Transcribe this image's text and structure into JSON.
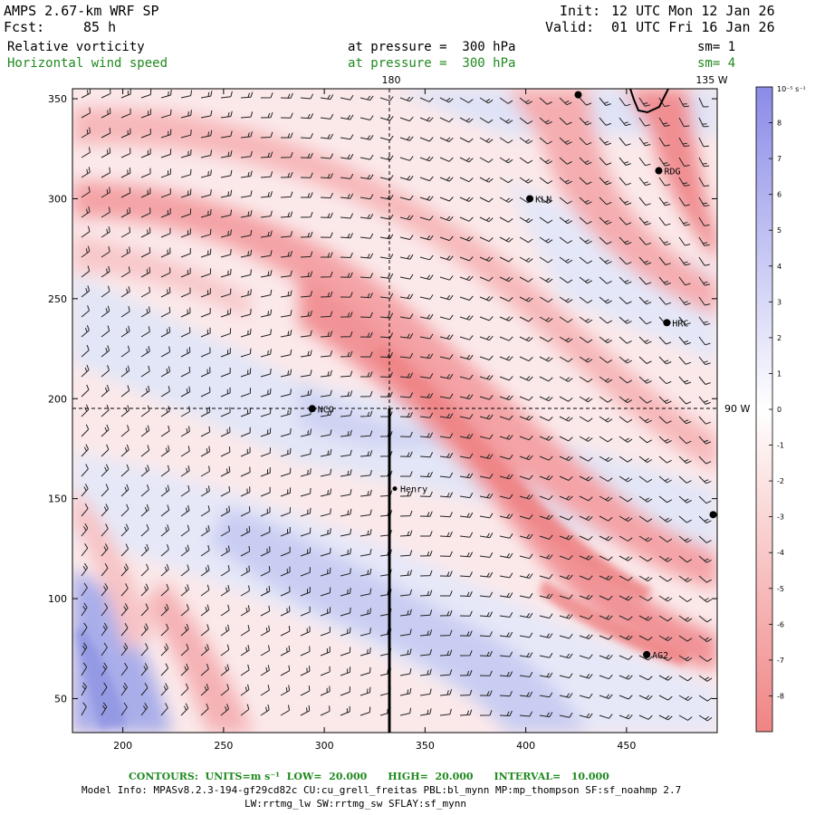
{
  "header": {
    "model": "AMPS 2.67-km WRF SP",
    "forecast_label": "Fcst:",
    "forecast_hours": "85 h",
    "init_label": "Init:",
    "init_time": "12 UTC Mon 12 Jan 26",
    "valid_label": "Valid:",
    "valid_time": "01 UTC Fri 16 Jan 26",
    "field1": "Relative vorticity",
    "field1_level": "at pressure =  300 hPa",
    "field1_sm": "sm= 1",
    "field2": "Horizontal wind speed",
    "field2_level": "at pressure =  300 hPa",
    "field2_sm": "sm= 4"
  },
  "map": {
    "x_ticks": [
      "200",
      "250",
      "300",
      "350",
      "400",
      "450"
    ],
    "x_tick_values": [
      200,
      250,
      300,
      350,
      400,
      450
    ],
    "y_ticks": [
      "50",
      "100",
      "150",
      "200",
      "250",
      "300",
      "350"
    ],
    "y_tick_values": [
      50,
      100,
      150,
      200,
      250,
      300,
      350
    ],
    "x_range": [
      175,
      495
    ],
    "y_range": [
      33,
      355
    ],
    "meridian_label_top": "180",
    "meridian_label_right": "135 W",
    "parallel_label": "90 W",
    "stations": [
      {
        "name": "RDG",
        "x": 466,
        "y": 314
      },
      {
        "name": "KLN",
        "x": 402,
        "y": 300
      },
      {
        "name": "HRC",
        "x": 470,
        "y": 238
      },
      {
        "name": "NCO",
        "x": 294,
        "y": 195
      },
      {
        "name": "Henry",
        "x": 335,
        "y": 155
      },
      {
        "name": "AG2",
        "x": 460,
        "y": 72
      }
    ],
    "unlabeled_stations": [
      {
        "x": 426,
        "y": 352
      },
      {
        "x": 493,
        "y": 142
      }
    ]
  },
  "colorbar": {
    "unit_label": "10⁻⁵ s⁻¹",
    "ticks": [
      "8",
      "7",
      "6",
      "5",
      "4",
      "3",
      "2",
      "1",
      "0",
      "-1",
      "-2",
      "-3",
      "-4",
      "-5",
      "-6",
      "-7",
      "-8"
    ],
    "colors": {
      "neg_max": "#f08484",
      "neutral": "#ffffff",
      "pos_max": "#8b8be8"
    }
  },
  "footer": {
    "contours": "CONTOURS:  UNITS=m s⁻¹  LOW=  20.000      HIGH=  20.000      INTERVAL=   10.000",
    "model_info_1": "Model Info: MPASv8.2.3-194-gf29cd82c CU:cu_grell_freitas PBL:bl_mynn MP:mp_thompson SF:sf_noahmp 2.7",
    "model_info_2": "LW:rrtmg_lw SW:rrtmg_sw SFLAY:sf_mynn"
  }
}
